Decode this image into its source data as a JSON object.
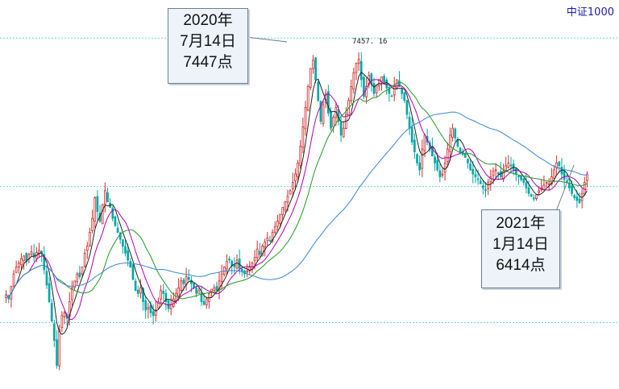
{
  "index_name": "中证1000",
  "chart_data": {
    "type": "candlestick",
    "title": "",
    "peak_value_label": "7457. 16",
    "grid": "horizontal dashed cyan",
    "colors": {
      "up": "#d22a2a",
      "down": "#00a8a8",
      "ma5": "#222222",
      "ma10": "#b000b0",
      "ma20": "#1f9a1f",
      "ma60": "#3a86d8",
      "gridline": "#6fd6d6"
    },
    "price_range": [
      5100,
      7700
    ],
    "gridline_values": [
      7600,
      6530,
      5550
    ],
    "annotations": [
      {
        "date_line": "2020年",
        "day_line": "7月14日",
        "value_line": "7447点",
        "date": "2020-07-14",
        "value": 7447
      },
      {
        "date_line": "2021年",
        "day_line": "1月14日",
        "value_line": "6414点",
        "date": "2021-01-14",
        "value": 6414
      }
    ],
    "closes": [
      5750,
      5720,
      5810,
      5900,
      5950,
      5980,
      6010,
      6030,
      5990,
      6040,
      6060,
      6020,
      6055,
      6070,
      6050,
      5930,
      5820,
      5700,
      5560,
      5420,
      5240,
      5500,
      5600,
      5620,
      5580,
      5700,
      5800,
      5850,
      5900,
      5880,
      5950,
      6050,
      6100,
      6200,
      6300,
      6450,
      6350,
      6280,
      6400,
      6500,
      6420,
      6380,
      6300,
      6250,
      6200,
      6150,
      6100,
      6050,
      6000,
      5950,
      5860,
      5780,
      5760,
      5800,
      5700,
      5640,
      5660,
      5620,
      5600,
      5640,
      5700,
      5780,
      5760,
      5700,
      5650,
      5680,
      5720,
      5760,
      5800,
      5850,
      5830,
      5880,
      5860,
      5830,
      5800,
      5760,
      5780,
      5700,
      5680,
      5720,
      5760,
      5790,
      5800,
      5780,
      5850,
      5900,
      5950,
      5990,
      6000,
      5960,
      5950,
      6000,
      5940,
      5920,
      5900,
      5920,
      5950,
      5980,
      6020,
      6080,
      6040,
      6100,
      6130,
      6160,
      6140,
      6200,
      6240,
      6280,
      6330,
      6380,
      6420,
      6460,
      6500,
      6560,
      6620,
      6700,
      6820,
      6960,
      7100,
      7250,
      7380,
      7440,
      7300,
      7150,
      7000,
      7120,
      7200,
      7060,
      6950,
      7030,
      7100,
      7000,
      6900,
      6950,
      7050,
      7150,
      7250,
      7350,
      7420,
      7447,
      7300,
      7180,
      7250,
      7330,
      7270,
      7200,
      7260,
      7300,
      7320,
      7280,
      7240,
      7200,
      7180,
      7260,
      7300,
      7250,
      7200,
      7150,
      7050,
      6950,
      6850,
      6780,
      6700,
      6650,
      6800,
      6900,
      6850,
      6800,
      6750,
      6700,
      6650,
      6600,
      6620,
      6700,
      6800,
      6900,
      6950,
      6880,
      6820,
      6780,
      6760,
      6740,
      6700,
      6650,
      6620,
      6600,
      6580,
      6550,
      6520,
      6500,
      6560,
      6600,
      6640,
      6650,
      6620,
      6600,
      6640,
      6680,
      6700,
      6680,
      6650,
      6620,
      6600,
      6580,
      6560,
      6520,
      6480,
      6460,
      6440,
      6470,
      6500,
      6520,
      6540,
      6560,
      6550,
      6600,
      6650,
      6700,
      6680,
      6620,
      6580,
      6560,
      6520,
      6480,
      6450,
      6430,
      6414,
      6480,
      6560,
      6620
    ]
  }
}
